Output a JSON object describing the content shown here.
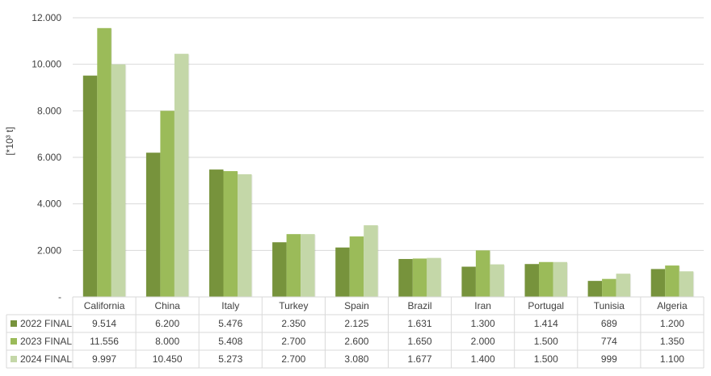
{
  "chart_data": {
    "type": "bar",
    "ylabel": "[*10³ t]",
    "ylim": [
      0,
      12000
    ],
    "y_ticks": [
      0,
      2000,
      4000,
      6000,
      8000,
      10000,
      12000
    ],
    "y_tick_labels": [
      "-",
      "2.000",
      "4.000",
      "6.000",
      "8.000",
      "10.000",
      "12.000"
    ],
    "grid": true,
    "legend_placement": "in data table (bottom-left)",
    "categories": [
      "California",
      "China",
      "Italy",
      "Turkey",
      "Spain",
      "Brazil",
      "Iran",
      "Portugal",
      "Tunisia",
      "Algeria"
    ],
    "series": [
      {
        "name": "2022 FINAL",
        "color": "#77933c",
        "values": [
          9514,
          6200,
          5476,
          2350,
          2125,
          1631,
          1300,
          1414,
          689,
          1200
        ],
        "labels": [
          "9.514",
          "6.200",
          "5.476",
          "2.350",
          "2.125",
          "1.631",
          "1.300",
          "1.414",
          "689",
          "1.200"
        ]
      },
      {
        "name": "2023 FINAL",
        "color": "#9bbb59",
        "values": [
          11556,
          8000,
          5408,
          2700,
          2600,
          1650,
          2000,
          1500,
          774,
          1350
        ],
        "labels": [
          "11.556",
          "8.000",
          "5.408",
          "2.700",
          "2.600",
          "1.650",
          "2.000",
          "1.500",
          "774",
          "1.350"
        ]
      },
      {
        "name": "2024 FINAL",
        "color": "#c4d7a8",
        "values": [
          9997,
          10450,
          5273,
          2700,
          3080,
          1677,
          1400,
          1500,
          999,
          1100
        ],
        "labels": [
          "9.997",
          "10.450",
          "5.273",
          "2.700",
          "3.080",
          "1.677",
          "1.400",
          "1.500",
          "999",
          "1.100"
        ]
      }
    ]
  }
}
